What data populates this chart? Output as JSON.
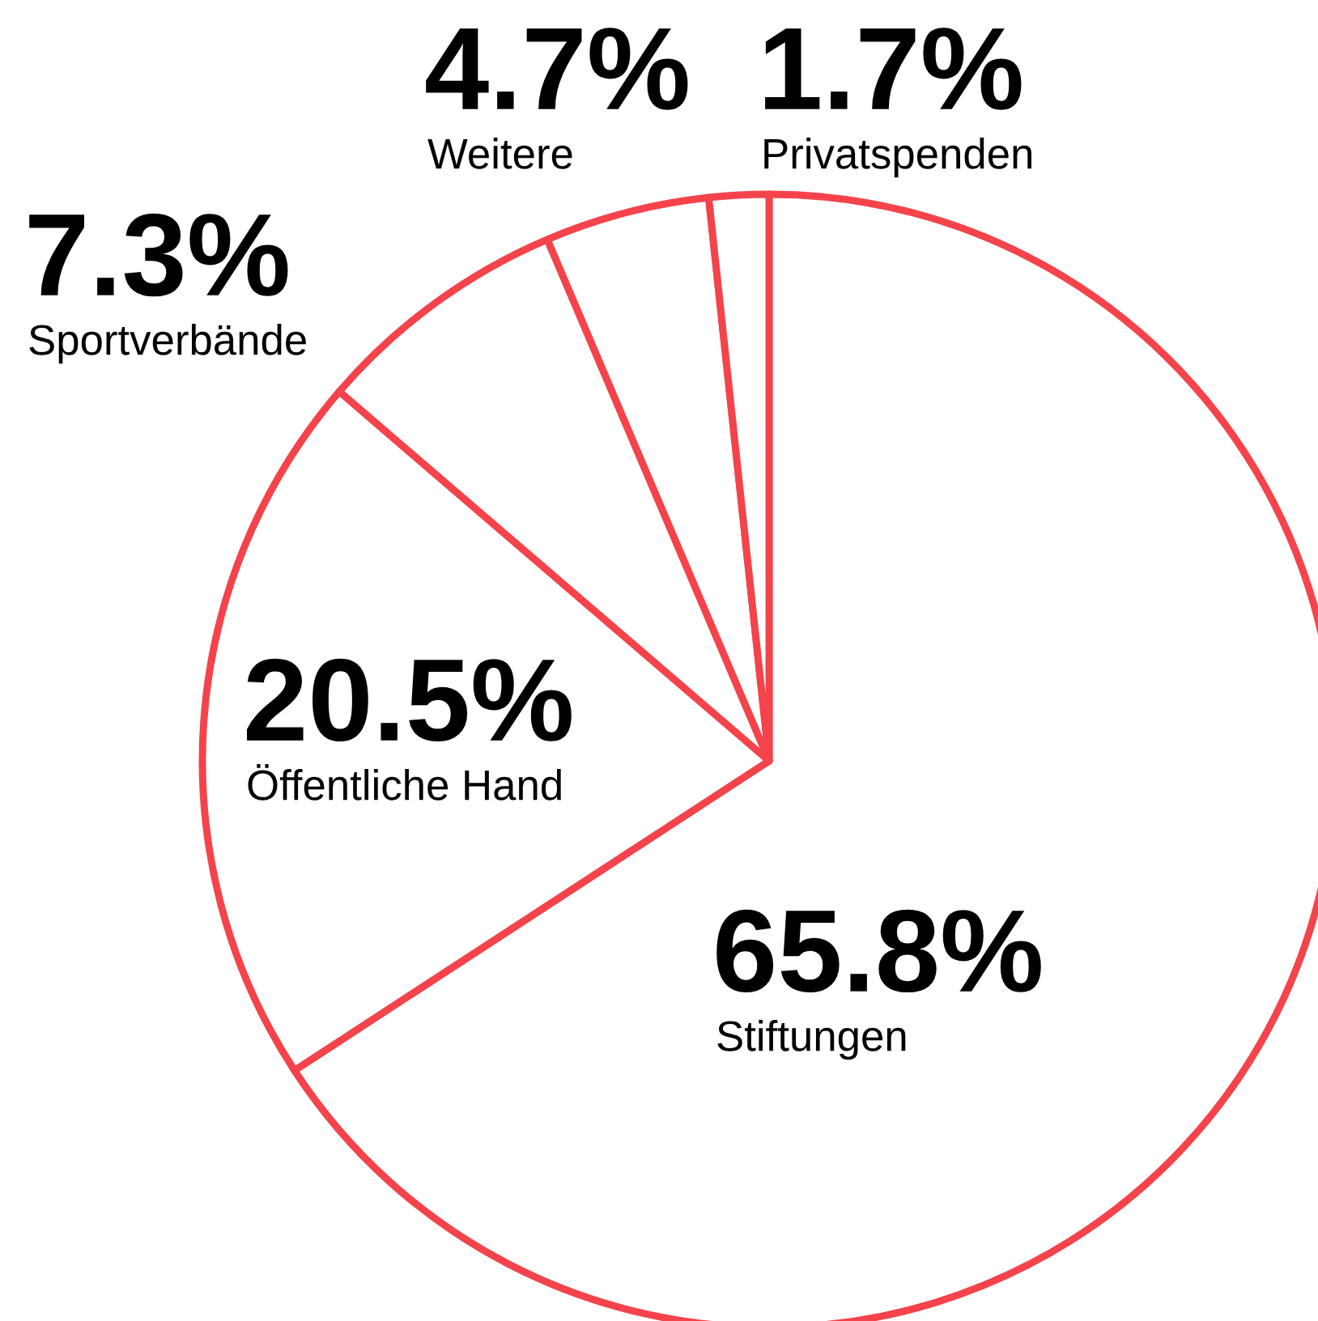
{
  "chart_data": {
    "type": "pie",
    "categories": [
      "Stiftungen",
      "Öffentliche Hand",
      "Sportverbände",
      "Weitere",
      "Privatspenden"
    ],
    "values": [
      65.8,
      20.5,
      7.3,
      4.7,
      1.7
    ],
    "value_labels": [
      "65.8%",
      "20.5%",
      "7.3%",
      "4.7%",
      "1.7%"
    ],
    "colors": [
      "#f4434b",
      "#f4434b",
      "#f4434b",
      "#f4434b",
      "#f4434b"
    ]
  }
}
